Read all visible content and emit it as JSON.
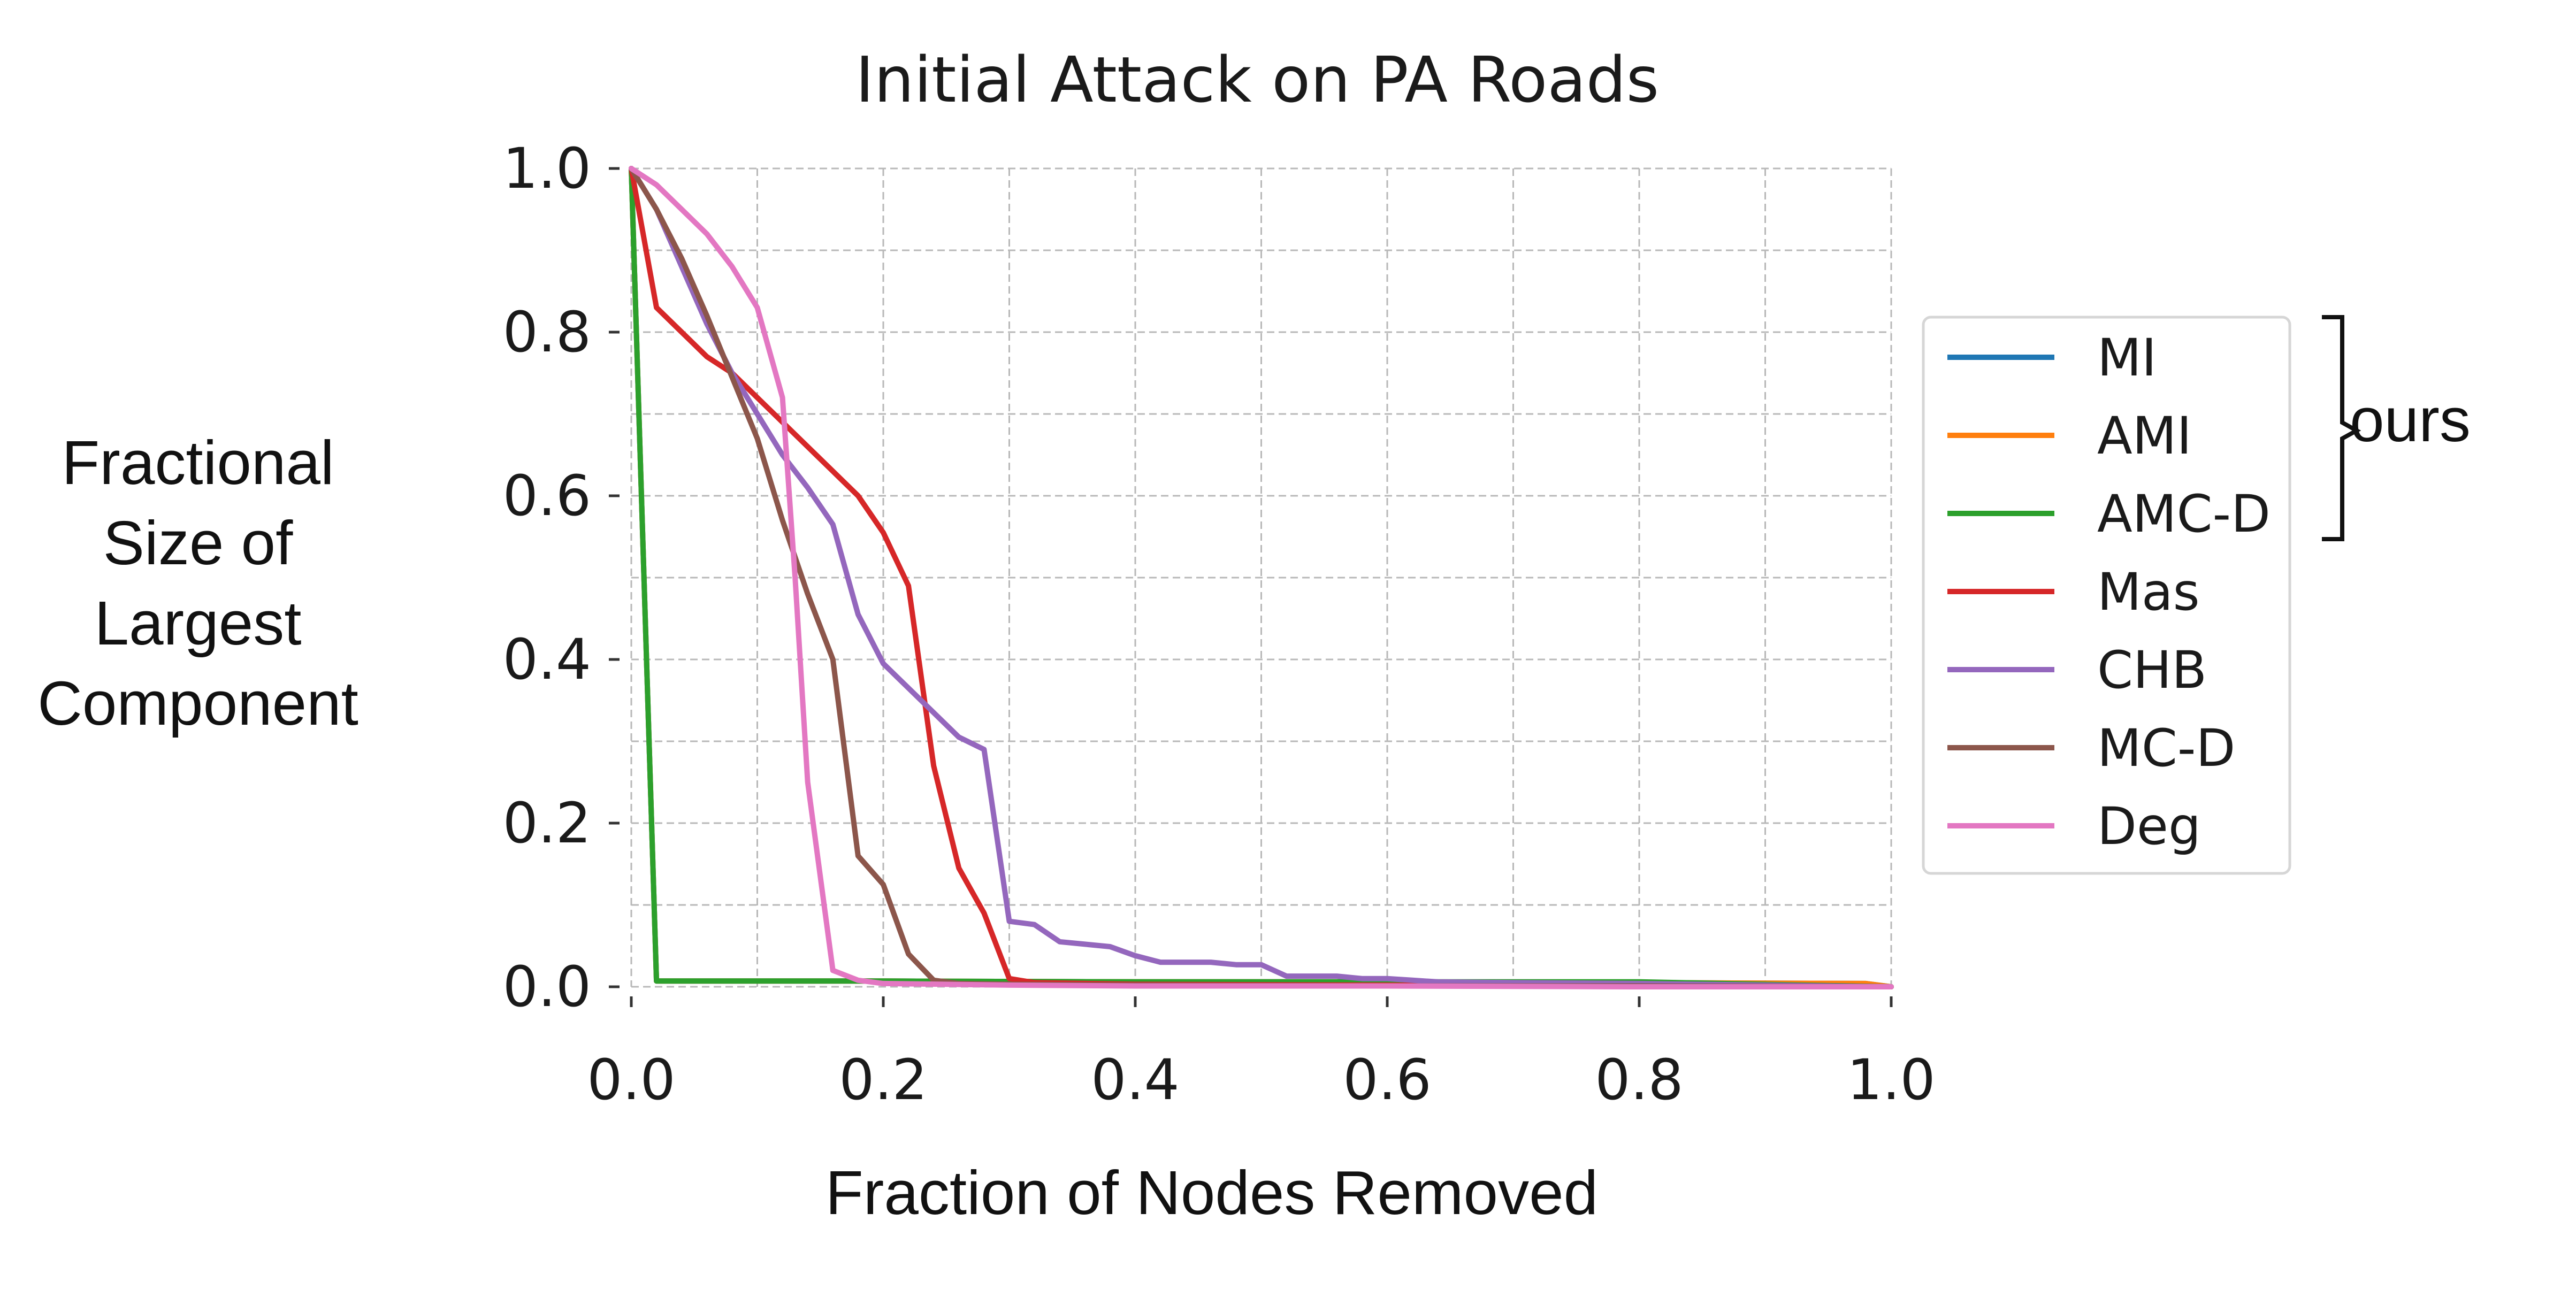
{
  "chart_data": {
    "type": "line",
    "title": "Initial Attack on PA Roads",
    "xlabel": "Fraction of Nodes Removed",
    "ylabel": [
      "Fractional",
      "Size of",
      "Largest",
      "Component"
    ],
    "xlim": [
      0,
      1
    ],
    "ylim": [
      0,
      1
    ],
    "xticks": [
      "0.0",
      "0.2",
      "0.4",
      "0.6",
      "0.8",
      "1.0"
    ],
    "yticks": [
      "0.0",
      "0.2",
      "0.4",
      "0.6",
      "0.8",
      "1.0"
    ],
    "grid": true,
    "legend_position": "right",
    "bracket_label": "ours",
    "series": [
      {
        "name": "MI",
        "color": "#1f77b4",
        "x": [
          0,
          0.02,
          0.04,
          0.1,
          0.2,
          0.4,
          0.6,
          0.8,
          0.98,
          1.0
        ],
        "y": [
          1.0,
          0.007,
          0.007,
          0.007,
          0.007,
          0.006,
          0.006,
          0.005,
          0.004,
          0.0
        ]
      },
      {
        "name": "AMI",
        "color": "#ff7f0e",
        "x": [
          0,
          0.02,
          0.04,
          0.1,
          0.2,
          0.4,
          0.6,
          0.8,
          0.98,
          1.0
        ],
        "y": [
          1.0,
          0.007,
          0.007,
          0.007,
          0.007,
          0.006,
          0.006,
          0.005,
          0.004,
          0.0
        ]
      },
      {
        "name": "AMC-D",
        "color": "#2ca02c",
        "x": [
          0,
          0.02,
          0.04,
          0.1,
          0.2,
          0.4,
          0.6,
          0.8,
          0.9,
          1.0
        ],
        "y": [
          1.0,
          0.007,
          0.007,
          0.007,
          0.007,
          0.006,
          0.006,
          0.006,
          0.003,
          0.0
        ]
      },
      {
        "name": "Mas",
        "color": "#d62728",
        "x": [
          0,
          0.02,
          0.04,
          0.06,
          0.08,
          0.1,
          0.12,
          0.14,
          0.16,
          0.18,
          0.2,
          0.22,
          0.24,
          0.26,
          0.28,
          0.3,
          0.32,
          0.4,
          0.6,
          0.8,
          1.0
        ],
        "y": [
          1.0,
          0.83,
          0.8,
          0.77,
          0.75,
          0.72,
          0.69,
          0.66,
          0.63,
          0.6,
          0.555,
          0.49,
          0.27,
          0.145,
          0.09,
          0.01,
          0.005,
          0.003,
          0.002,
          0.001,
          0.0
        ]
      },
      {
        "name": "CHB",
        "color": "#9467bd",
        "x": [
          0,
          0.02,
          0.04,
          0.06,
          0.08,
          0.1,
          0.12,
          0.14,
          0.16,
          0.18,
          0.2,
          0.22,
          0.24,
          0.26,
          0.28,
          0.3,
          0.32,
          0.34,
          0.36,
          0.38,
          0.4,
          0.42,
          0.44,
          0.46,
          0.48,
          0.5,
          0.52,
          0.54,
          0.56,
          0.58,
          0.6,
          0.62,
          0.64,
          0.7,
          0.8,
          0.9,
          1.0
        ],
        "y": [
          1.0,
          0.95,
          0.88,
          0.81,
          0.75,
          0.7,
          0.65,
          0.61,
          0.565,
          0.455,
          0.395,
          0.365,
          0.335,
          0.305,
          0.29,
          0.08,
          0.076,
          0.055,
          0.052,
          0.049,
          0.038,
          0.03,
          0.03,
          0.03,
          0.027,
          0.027,
          0.013,
          0.013,
          0.013,
          0.01,
          0.01,
          0.008,
          0.006,
          0.005,
          0.004,
          0.002,
          0.0
        ]
      },
      {
        "name": "MC-D",
        "color": "#8c564b",
        "x": [
          0,
          0.02,
          0.04,
          0.06,
          0.08,
          0.1,
          0.12,
          0.14,
          0.16,
          0.18,
          0.2,
          0.22,
          0.24,
          0.26,
          0.3,
          0.4,
          0.6,
          0.8,
          1.0
        ],
        "y": [
          1.0,
          0.95,
          0.89,
          0.82,
          0.745,
          0.67,
          0.57,
          0.48,
          0.4,
          0.16,
          0.125,
          0.04,
          0.008,
          0.004,
          0.003,
          0.002,
          0.001,
          0.001,
          0.0
        ]
      },
      {
        "name": "Deg",
        "color": "#e377c2",
        "x": [
          0,
          0.02,
          0.04,
          0.06,
          0.08,
          0.1,
          0.12,
          0.13,
          0.14,
          0.16,
          0.18,
          0.2,
          0.3,
          0.4,
          0.6,
          0.8,
          1.0
        ],
        "y": [
          1.0,
          0.98,
          0.95,
          0.92,
          0.88,
          0.83,
          0.72,
          0.5,
          0.25,
          0.02,
          0.008,
          0.004,
          0.002,
          0.001,
          0.001,
          0.0,
          0.0
        ]
      }
    ]
  }
}
